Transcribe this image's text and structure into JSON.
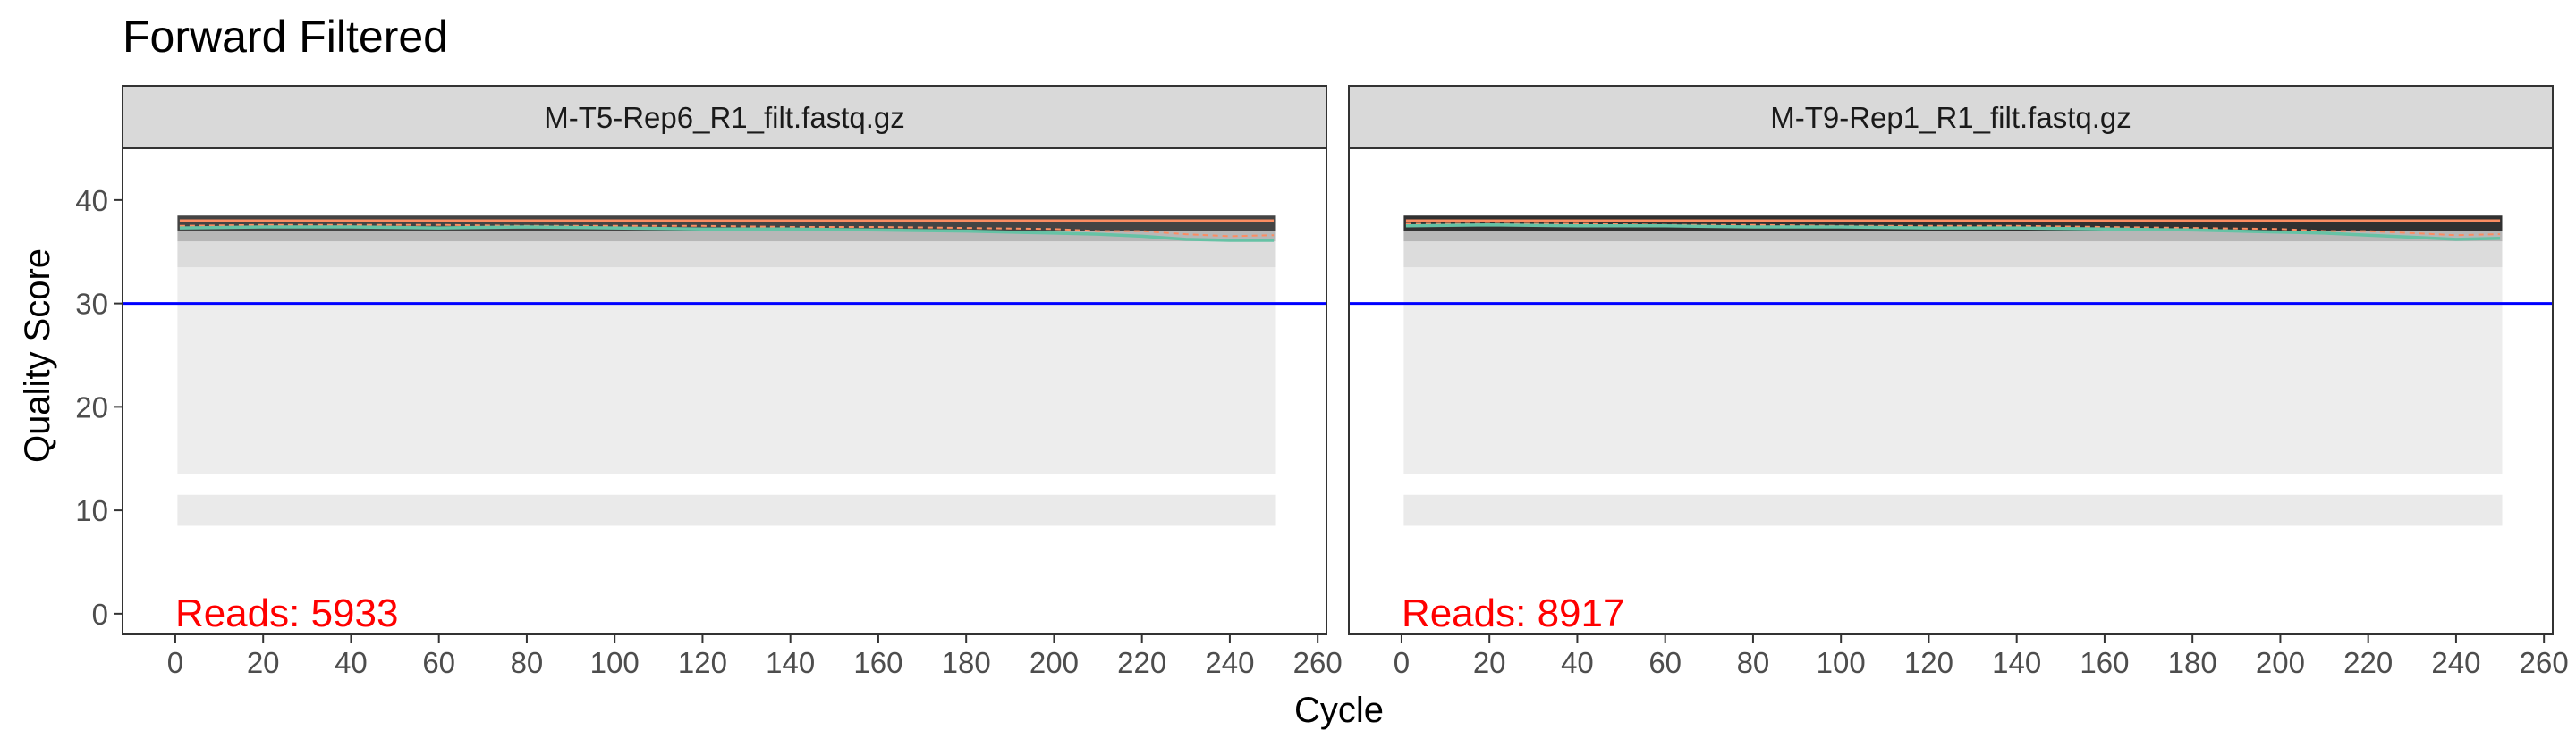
{
  "chart_data": {
    "type": "heatmap",
    "title": "Forward Filtered",
    "xlabel": "Cycle",
    "ylabel": "Quality Score",
    "xlim": [
      -12,
      262
    ],
    "ylim": [
      -2,
      45
    ],
    "x_ticks": [
      0,
      20,
      40,
      60,
      80,
      100,
      120,
      140,
      160,
      180,
      200,
      220,
      240,
      260
    ],
    "y_ticks": [
      0,
      10,
      20,
      30,
      40
    ],
    "threshold_line": {
      "y": 30,
      "color": "#0000ff"
    },
    "grid": false,
    "colors": {
      "mean_line": "#66c2a5",
      "median_line": "#fc8d62",
      "quartile_line": "#fc8d62",
      "threshold": "#0000ff",
      "reads_text": "#ff0000",
      "strip_fill": "#d9d9d9",
      "heat_low": "#f4f4f4",
      "heat_high": "#000000"
    },
    "panels": [
      {
        "strip_label": "M-T5-Rep6_R1_filt.fastq.gz",
        "reads_label": "Reads:  5933",
        "cycles": [
          1,
          250
        ],
        "heat_bands": [
          {
            "y_from": 8.5,
            "y_to": 11.5,
            "shade": 0.04
          },
          {
            "y_from": 13.5,
            "y_to": 33.5,
            "shade": 0.03
          },
          {
            "y_from": 33.5,
            "y_to": 36.0,
            "shade": 0.1
          },
          {
            "y_from": 36.0,
            "y_to": 37.0,
            "shade": 0.25
          },
          {
            "y_from": 37.0,
            "y_to": 38.5,
            "shade": 0.72
          }
        ],
        "mean": {
          "x": [
            1,
            20,
            40,
            60,
            80,
            100,
            120,
            140,
            160,
            180,
            200,
            210,
            220,
            230,
            240,
            250
          ],
          "y": [
            37.3,
            37.4,
            37.4,
            37.3,
            37.4,
            37.3,
            37.2,
            37.2,
            37.1,
            37.0,
            36.8,
            36.7,
            36.5,
            36.2,
            36.1,
            36.1
          ]
        },
        "median": {
          "x": [
            1,
            250
          ],
          "y": [
            38,
            38
          ]
        },
        "quartiles": {
          "x": [
            1,
            20,
            40,
            60,
            80,
            100,
            120,
            140,
            160,
            180,
            200,
            210,
            220,
            230,
            240,
            250
          ],
          "y": [
            37.5,
            37.6,
            37.6,
            37.6,
            37.5,
            37.5,
            37.5,
            37.4,
            37.4,
            37.3,
            37.2,
            37.0,
            37.0,
            36.7,
            36.5,
            36.6
          ]
        }
      },
      {
        "strip_label": "M-T9-Rep1_R1_filt.fastq.gz",
        "reads_label": "Reads:  8917",
        "cycles": [
          1,
          250
        ],
        "heat_bands": [
          {
            "y_from": 8.5,
            "y_to": 11.5,
            "shade": 0.04
          },
          {
            "y_from": 13.5,
            "y_to": 33.5,
            "shade": 0.03
          },
          {
            "y_from": 33.5,
            "y_to": 36.0,
            "shade": 0.1
          },
          {
            "y_from": 36.0,
            "y_to": 37.0,
            "shade": 0.25
          },
          {
            "y_from": 37.0,
            "y_to": 38.5,
            "shade": 0.8
          }
        ],
        "mean": {
          "x": [
            1,
            20,
            40,
            60,
            80,
            100,
            120,
            140,
            160,
            180,
            200,
            210,
            220,
            230,
            240,
            250
          ],
          "y": [
            37.5,
            37.6,
            37.5,
            37.5,
            37.4,
            37.4,
            37.3,
            37.3,
            37.2,
            37.1,
            36.9,
            36.8,
            36.6,
            36.4,
            36.2,
            36.3
          ]
        },
        "median": {
          "x": [
            1,
            250
          ],
          "y": [
            38,
            38
          ]
        },
        "quartiles": {
          "x": [
            1,
            20,
            40,
            60,
            80,
            100,
            120,
            140,
            160,
            180,
            200,
            210,
            220,
            230,
            240,
            250
          ],
          "y": [
            37.7,
            37.7,
            37.7,
            37.6,
            37.6,
            37.5,
            37.5,
            37.5,
            37.4,
            37.3,
            37.2,
            37.0,
            37.0,
            36.8,
            36.6,
            36.7
          ]
        }
      }
    ]
  }
}
